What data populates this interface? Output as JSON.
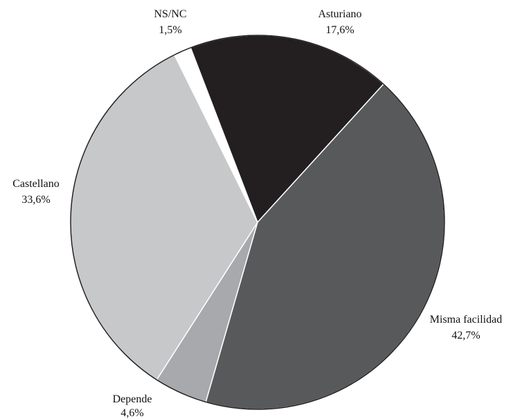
{
  "chart_data": {
    "type": "pie",
    "title": "",
    "slices": [
      {
        "name": "Asturiano",
        "value": 17.6,
        "label": "17,6%",
        "color": "#231f20"
      },
      {
        "name": "Misma facilidad",
        "value": 42.7,
        "label": "42,7%",
        "color": "#58595b"
      },
      {
        "name": "Depende",
        "value": 4.6,
        "label": "4,6%",
        "color": "#a7a9ac"
      },
      {
        "name": "Castellano",
        "value": 33.6,
        "label": "33,6%",
        "color": "#c7c8ca"
      },
      {
        "name": "NS/NC",
        "value": 1.5,
        "label": "1,5%",
        "color": "#ffffff"
      }
    ],
    "start_angle_deg": -21
  }
}
